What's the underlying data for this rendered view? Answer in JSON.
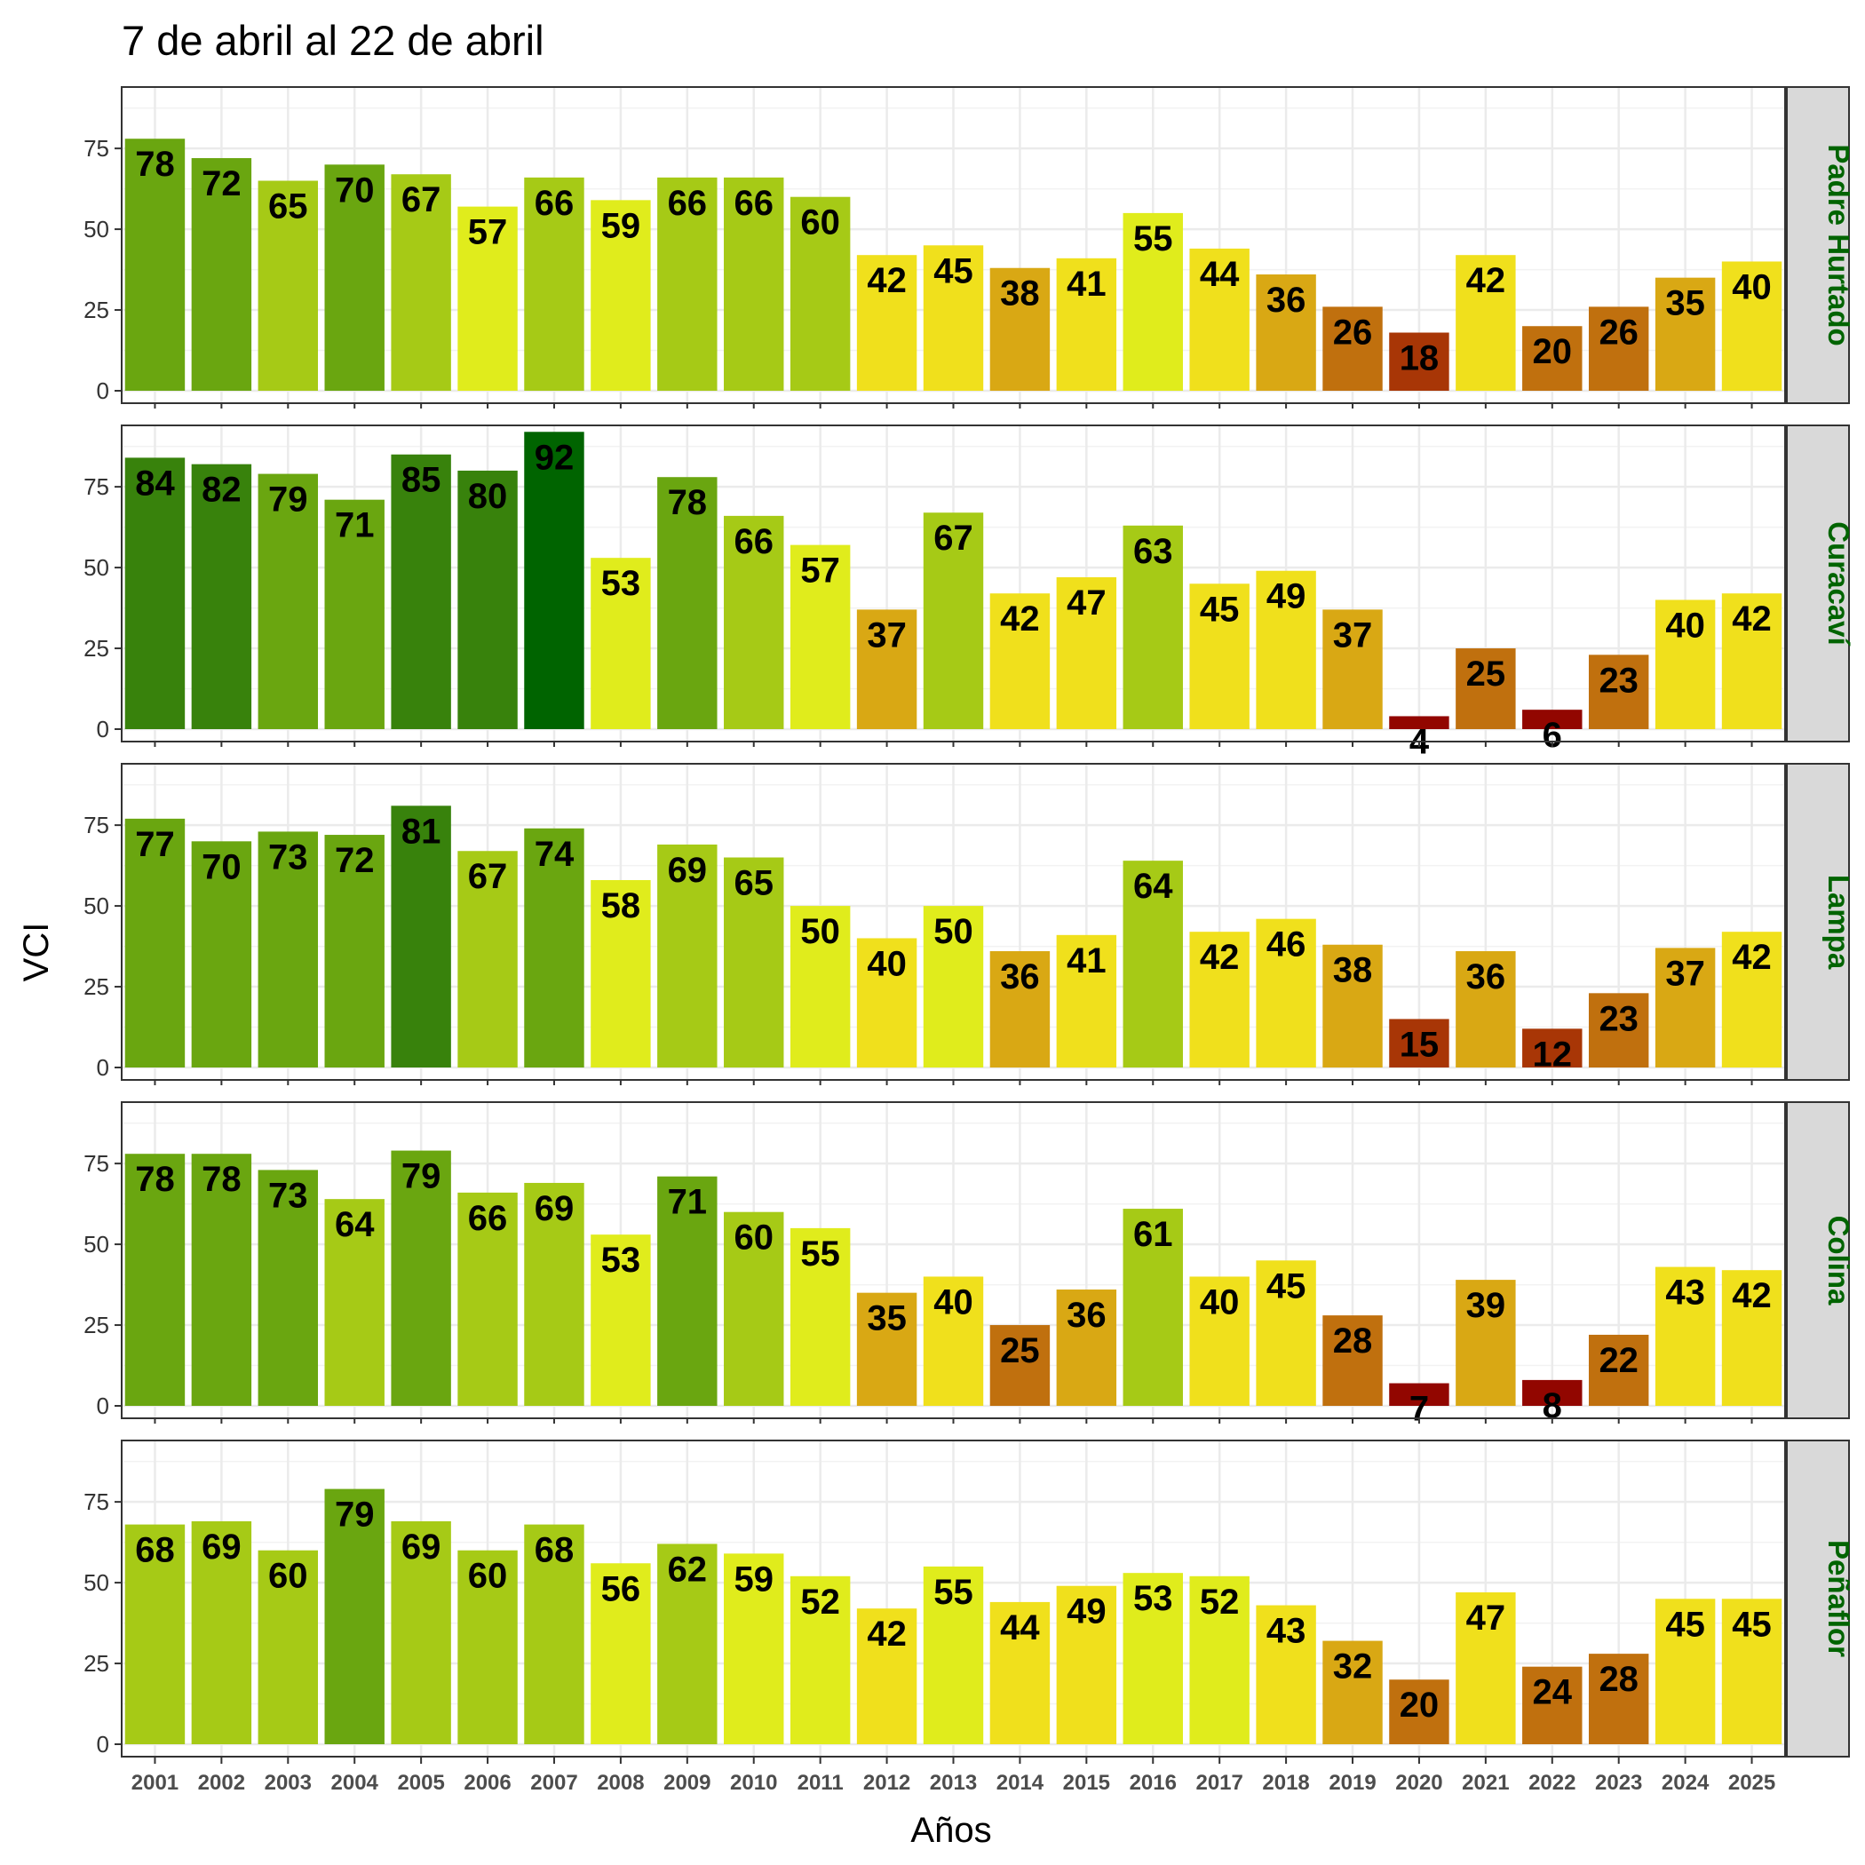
{
  "chart_data": {
    "type": "bar",
    "title": "7 de abril al 22 de abril",
    "xlabel": "Años",
    "ylabel": "VCI",
    "ylim": [
      0,
      94
    ],
    "yticks": [
      0,
      25,
      50,
      75
    ],
    "grid": true,
    "categories": [
      "2001",
      "2002",
      "2003",
      "2004",
      "2005",
      "2006",
      "2007",
      "2008",
      "2009",
      "2010",
      "2011",
      "2012",
      "2013",
      "2014",
      "2015",
      "2016",
      "2017",
      "2018",
      "2019",
      "2020",
      "2021",
      "2022",
      "2023",
      "2024",
      "2025"
    ],
    "panels": [
      {
        "name": "Padre Hurtado",
        "values": [
          78,
          72,
          65,
          70,
          67,
          57,
          66,
          59,
          66,
          66,
          60,
          42,
          45,
          38,
          41,
          55,
          44,
          36,
          26,
          18,
          42,
          20,
          26,
          35,
          40
        ]
      },
      {
        "name": "Curacaví",
        "values": [
          84,
          82,
          79,
          71,
          85,
          80,
          92,
          53,
          78,
          66,
          57,
          37,
          67,
          42,
          47,
          63,
          45,
          49,
          37,
          4,
          25,
          6,
          23,
          40,
          42
        ]
      },
      {
        "name": "Lampa",
        "values": [
          77,
          70,
          73,
          72,
          81,
          67,
          74,
          58,
          69,
          65,
          50,
          40,
          50,
          36,
          41,
          64,
          42,
          46,
          38,
          15,
          36,
          12,
          23,
          37,
          42
        ]
      },
      {
        "name": "Colina",
        "values": [
          78,
          78,
          73,
          64,
          79,
          66,
          69,
          53,
          71,
          60,
          55,
          35,
          40,
          25,
          36,
          61,
          40,
          45,
          28,
          7,
          39,
          8,
          22,
          43,
          42
        ]
      },
      {
        "name": "Peñaflor",
        "values": [
          68,
          69,
          60,
          79,
          69,
          60,
          68,
          56,
          62,
          59,
          52,
          42,
          55,
          44,
          49,
          53,
          52,
          43,
          32,
          20,
          47,
          24,
          28,
          45,
          45
        ]
      }
    ],
    "color_scale": {
      "stops": [
        {
          "min": 90,
          "color": "#006400"
        },
        {
          "min": 80,
          "color": "#38820c"
        },
        {
          "min": 70,
          "color": "#6aa610"
        },
        {
          "min": 60,
          "color": "#a6ca16"
        },
        {
          "min": 50,
          "color": "#e0ec1c"
        },
        {
          "min": 40,
          "color": "#f0e01c"
        },
        {
          "min": 30,
          "color": "#d9a814"
        },
        {
          "min": 20,
          "color": "#c0700e"
        },
        {
          "min": 10,
          "color": "#a83606"
        },
        {
          "min": 0,
          "color": "#920600"
        }
      ]
    },
    "strip_fill": "#d9d9d9",
    "strip_text_color": "#006400"
  }
}
